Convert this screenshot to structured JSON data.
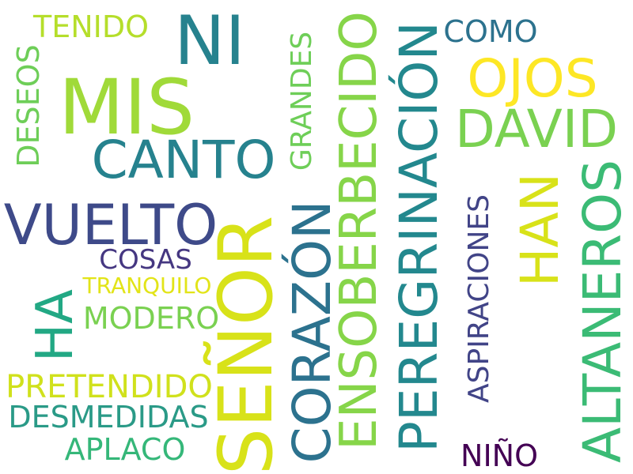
{
  "words": {
    "ni": {
      "text": "NI",
      "color": "#26828e"
    },
    "mis": {
      "text": "MIS",
      "color": "#a0da39"
    },
    "canto": {
      "text": "CANTO",
      "color": "#26828e"
    },
    "vuelto": {
      "text": "VUELTO",
      "color": "#3e4a89"
    },
    "tenido": {
      "text": "TENIDO",
      "color": "#b5de2b"
    },
    "deseos": {
      "text": "DESEOS",
      "color": "#6ece58"
    },
    "cosas": {
      "text": "COSAS",
      "color": "#453781"
    },
    "tranquilo": {
      "text": "TRANQUILO",
      "color": "#e2e418"
    },
    "modero": {
      "text": "MODERO",
      "color": "#7ad151"
    },
    "ha": {
      "text": "HA",
      "color": "#22a884"
    },
    "pretendido": {
      "text": "PRETENDIDO",
      "color": "#d0e11c"
    },
    "desmedidas": {
      "text": "DESMEDIDAS",
      "color": "#2a9a87"
    },
    "aplaco": {
      "text": "APLACO",
      "color": "#35b779"
    },
    "senor": {
      "text": "SEÑOR",
      "color": "#d8e219"
    },
    "grandes": {
      "text": "GRANDES",
      "color": "#6ece58"
    },
    "corazon": {
      "text": "CORAZÓN",
      "color": "#2c728e"
    },
    "ensoberbecido": {
      "text": "ENSOBERBECIDO",
      "color": "#86d549"
    },
    "peregrinacion": {
      "text": "PEREGRINACIÓN",
      "color": "#23888e"
    },
    "como": {
      "text": "COMO",
      "color": "#2c728e"
    },
    "ojos": {
      "text": "OJOS",
      "color": "#fde725"
    },
    "david": {
      "text": "DAVID",
      "color": "#7ad151"
    },
    "han": {
      "text": "HAN",
      "color": "#d8e219"
    },
    "aspiraciones": {
      "text": "ASPIRACIONES",
      "color": "#414487"
    },
    "nino": {
      "text": "NIÑO",
      "color": "#440154"
    },
    "altaneros": {
      "text": "ALTANEROS",
      "color": "#3bbb75"
    }
  }
}
